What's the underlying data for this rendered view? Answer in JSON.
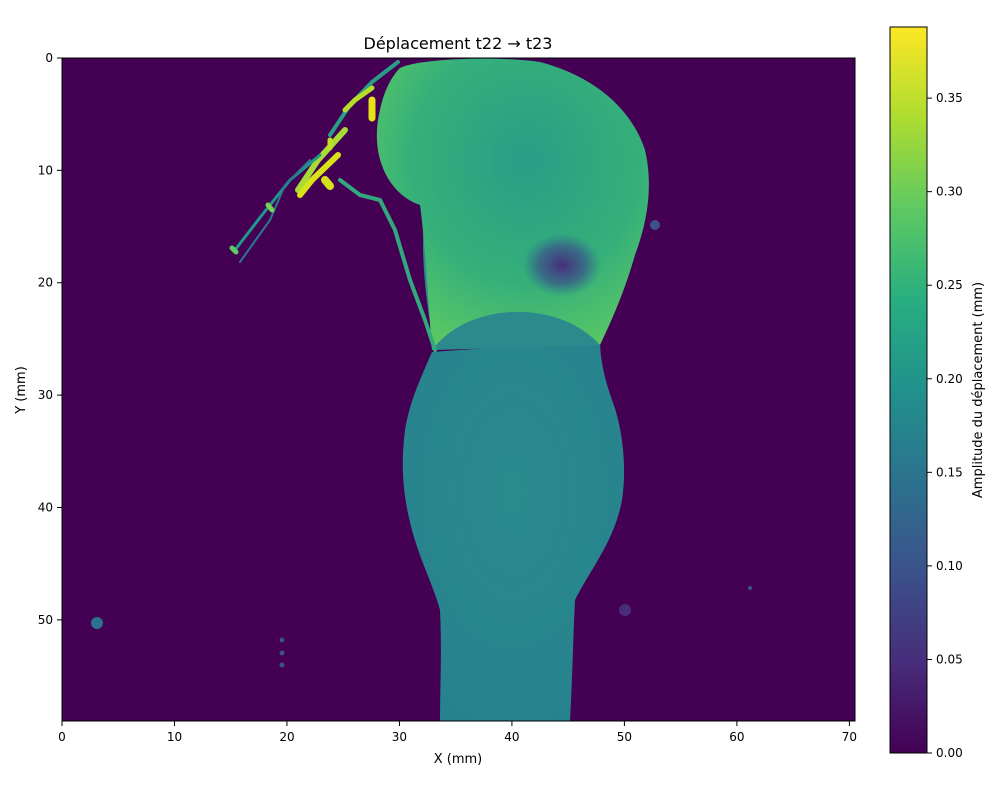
{
  "chart_data": {
    "type": "heatmap",
    "title": "Déplacement t22 → t23",
    "xlabel": "X (mm)",
    "ylabel": "Y (mm)",
    "xlim": [
      0,
      70.5
    ],
    "ylim": [
      59,
      0
    ],
    "x_ticks": [
      0,
      10,
      20,
      30,
      40,
      50,
      60,
      70
    ],
    "y_ticks": [
      0,
      10,
      20,
      30,
      40,
      50
    ],
    "grid": false,
    "colormap": "viridis",
    "colorbar": {
      "label": "Amplitude du déplacement (mm)",
      "range": [
        0.0,
        0.388
      ],
      "ticks": [
        "0.00",
        "0.05",
        "0.10",
        "0.15",
        "0.20",
        "0.25",
        "0.30",
        "0.35"
      ]
    },
    "background_value": 0.0,
    "regions": [
      {
        "name": "upper lobe",
        "x_range": [
          28.5,
          52.5
        ],
        "y_range": [
          0,
          26
        ],
        "typical_value": 0.26
      },
      {
        "name": "neck",
        "x_range": [
          32,
          48
        ],
        "y_range": [
          15,
          27
        ],
        "typical_value": 0.17
      },
      {
        "name": "central low spot",
        "x": 44.5,
        "y": 18.5,
        "typical_value": 0.07
      },
      {
        "name": "lower body",
        "x_range": [
          30,
          50
        ],
        "y_range": [
          26,
          59
        ],
        "typical_value": 0.16
      },
      {
        "name": "fibrous strands",
        "x_range": [
          15,
          35
        ],
        "y_range": [
          0,
          26
        ],
        "typical_value": 0.35,
        "peak_value": 0.388
      }
    ],
    "colors": {
      "low": "#440154",
      "mid": "#21918c",
      "high": "#fde725"
    }
  }
}
